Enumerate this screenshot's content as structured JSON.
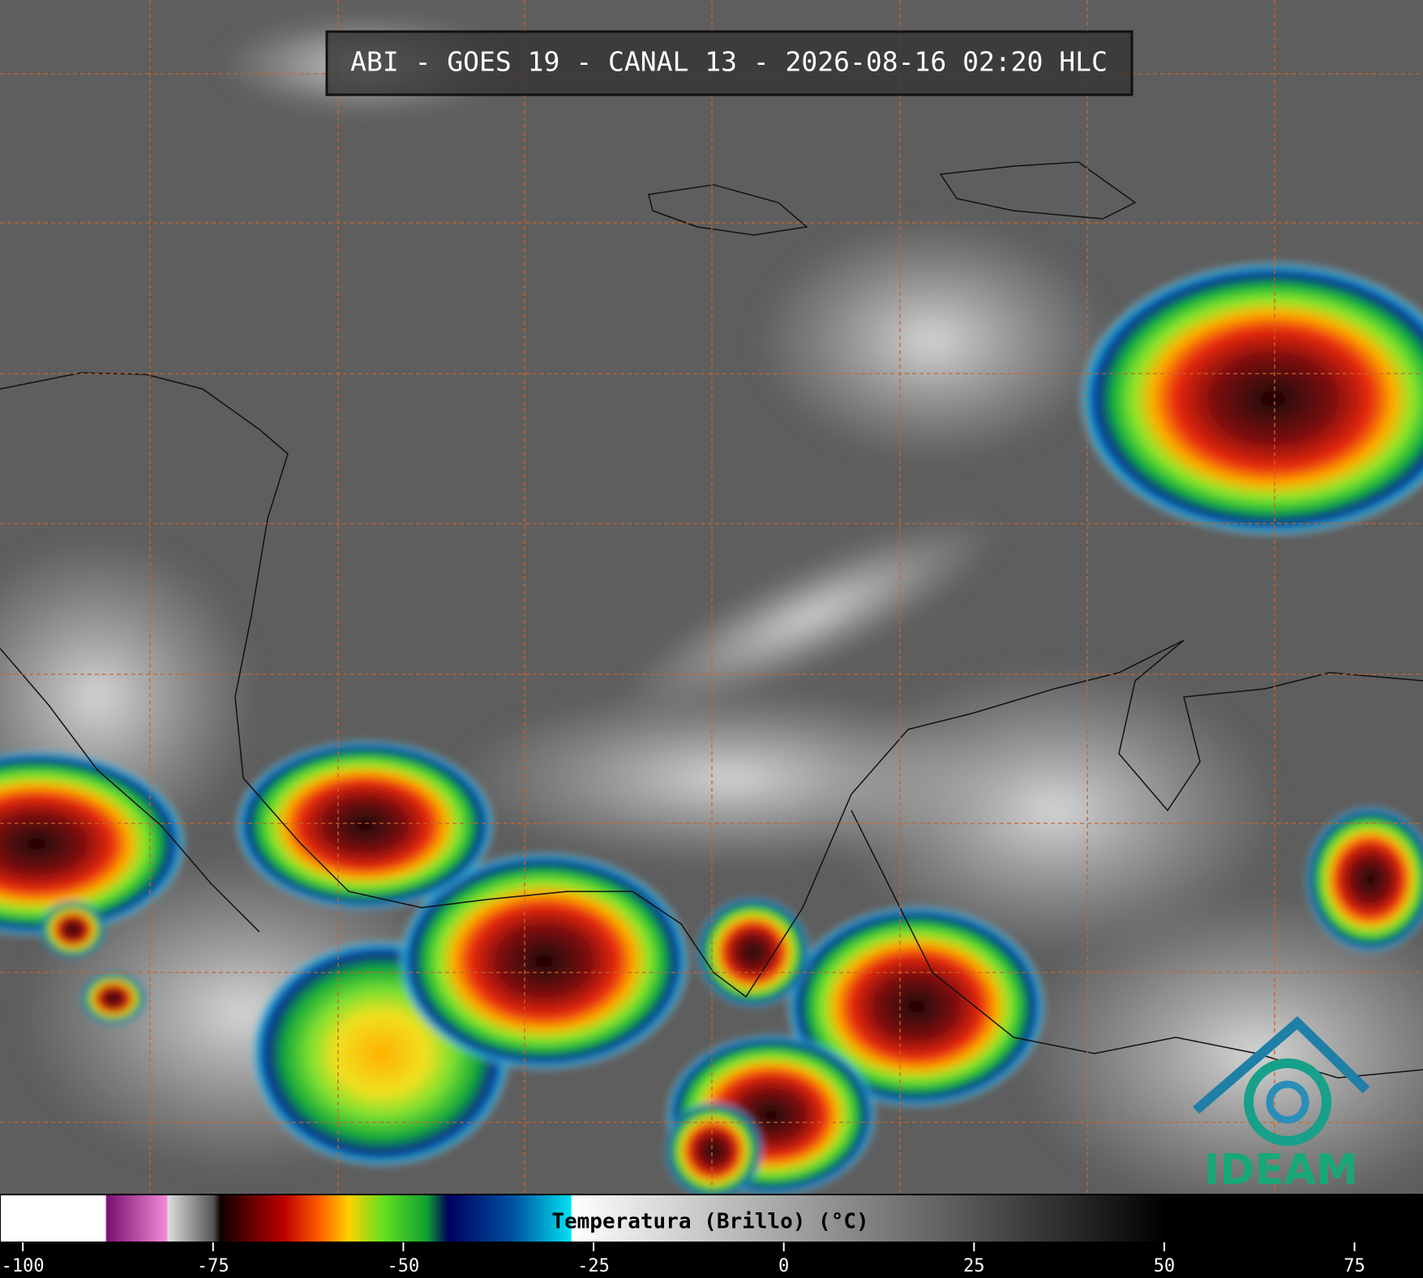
{
  "title": "ABI - GOES 19 - CANAL 13 - 2026-08-16 02:20 HLC",
  "logo": "IDEAM",
  "colorbar": {
    "label": "Temperatura (Brillo) (°C)",
    "lim": [
      -103,
      84
    ],
    "ticks": [
      -100,
      -75,
      -50,
      -25,
      0,
      25,
      50,
      75
    ]
  }
}
